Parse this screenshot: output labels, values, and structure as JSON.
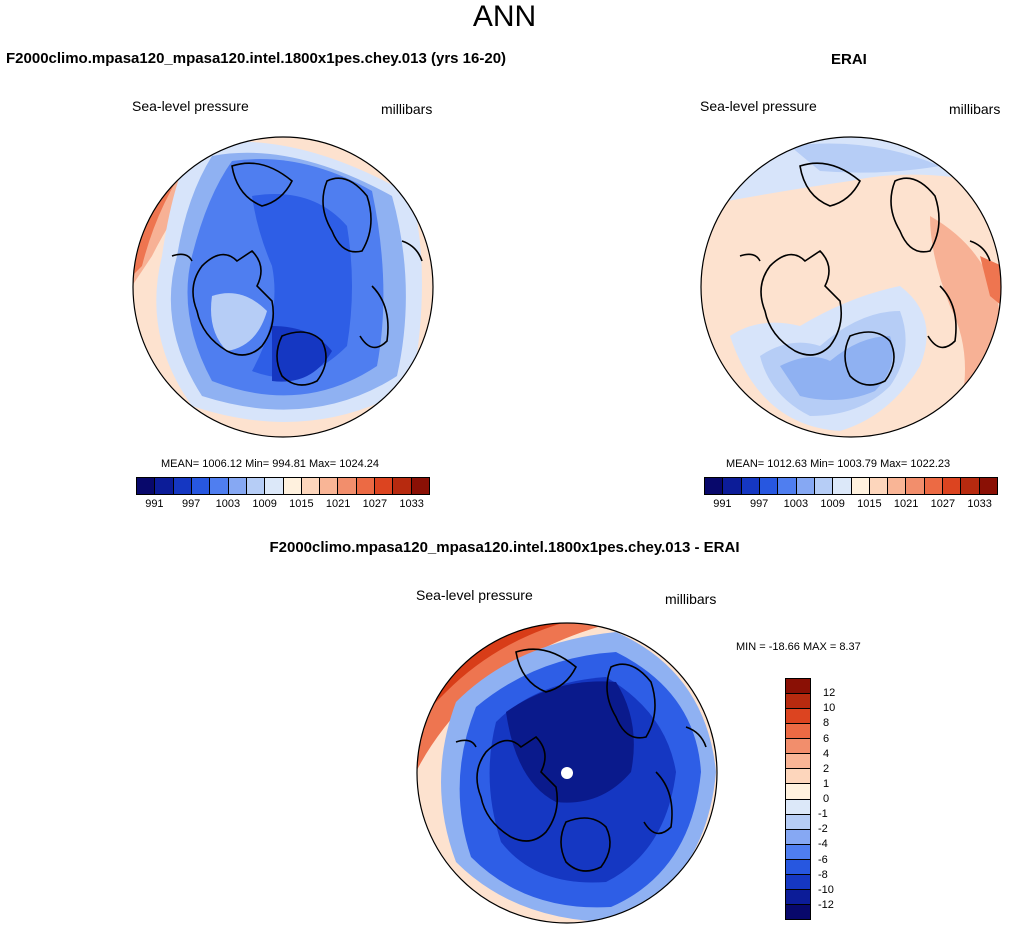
{
  "figure": {
    "title": "ANN"
  },
  "panels": {
    "model": {
      "title": "F2000climo.mpasa120_mpasa120.intel.1800x1pes.chey.013 (yrs 16-20)",
      "left_label": "Sea-level pressure",
      "right_label": "millibars",
      "stats": "MEAN= 1006.12  Min= 994.81  Max= 1024.24"
    },
    "obs": {
      "title": "ERAI",
      "left_label": "Sea-level pressure",
      "right_label": "millibars",
      "stats": "MEAN= 1012.63  Min= 1003.79  Max= 1022.23"
    },
    "diff": {
      "title": "F2000climo.mpasa120_mpasa120.intel.1800x1pes.chey.013 - ERAI",
      "left_label": "Sea-level pressure",
      "right_label": "millibars",
      "stats": "MIN = -18.66 MAX =   8.37"
    }
  },
  "colorbars": {
    "abs": {
      "ticks": [
        "991",
        "997",
        "1003",
        "1009",
        "1015",
        "1021",
        "1027",
        "1033"
      ],
      "colors": [
        "#08086b",
        "#0c1c98",
        "#1537c2",
        "#2757e0",
        "#4f7ef0",
        "#86a8f3",
        "#b6cdf6",
        "#dce8f9",
        "#fff1de",
        "#fdd6bc",
        "#f9b596",
        "#f28e6c",
        "#ec6a44",
        "#dc4420",
        "#b72a0f",
        "#8a1005"
      ]
    },
    "diff": {
      "ticks": [
        "12",
        "10",
        "8",
        "6",
        "4",
        "2",
        "1",
        "0",
        "-1",
        "-2",
        "-4",
        "-6",
        "-8",
        "-10",
        "-12"
      ],
      "colors": [
        "#8a1005",
        "#b72a0f",
        "#dc4420",
        "#ec6a44",
        "#f28e6c",
        "#f9b596",
        "#fdd6bc",
        "#fff1de",
        "#dce8f9",
        "#b6cdf6",
        "#86a8f3",
        "#4f7ef0",
        "#2757e0",
        "#1537c2",
        "#0c1c98",
        "#08086b"
      ]
    }
  },
  "map_colors": {
    "deep_blue": "#0a1a8c",
    "mid_blue": "#2e5ee6",
    "light_blue": "#8fb1f2",
    "pale_blue": "#d7e4fa",
    "pale_red": "#fde2cf",
    "light_red": "#f7b195",
    "mid_red": "#ee7550",
    "dark_red": "#d83d18"
  }
}
